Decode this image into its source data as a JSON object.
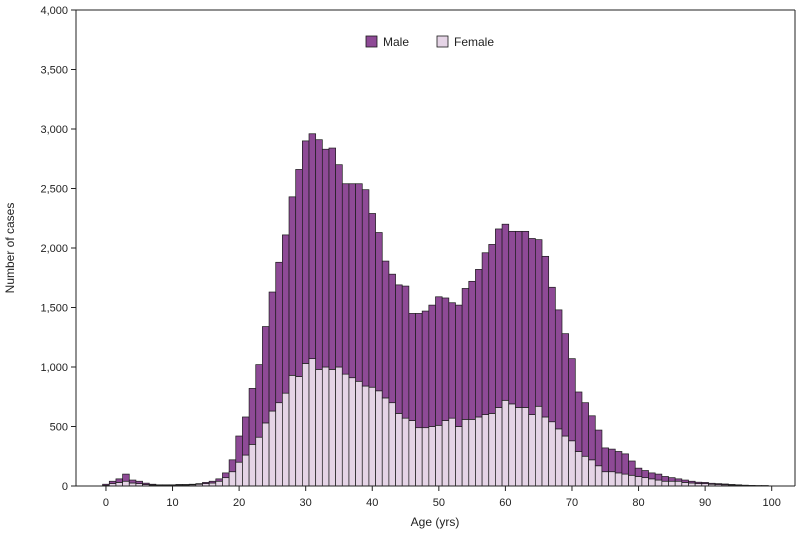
{
  "chart_data": {
    "type": "bar",
    "stacked": true,
    "title": "",
    "xlabel": "Age (yrs)",
    "ylabel": "Number of cases",
    "xlim": [
      -4,
      104
    ],
    "ylim": [
      0,
      4000
    ],
    "x_ticks": [
      0,
      10,
      20,
      30,
      40,
      50,
      60,
      70,
      80,
      90,
      100
    ],
    "x_tick_labels": [
      "0",
      "10",
      "20",
      "30",
      "40",
      "50",
      "60",
      "70",
      "80",
      "90",
      "100"
    ],
    "y_ticks": [
      0,
      500,
      1000,
      1500,
      2000,
      2500,
      3000,
      3500,
      4000
    ],
    "y_tick_labels": [
      "0",
      "500",
      "1,000",
      "1,500",
      "2,000",
      "2,500",
      "3,000",
      "3,500",
      "4,000"
    ],
    "grid": false,
    "legend": "top-center",
    "ages": [
      0,
      1,
      2,
      3,
      4,
      5,
      6,
      7,
      8,
      9,
      10,
      11,
      12,
      13,
      14,
      15,
      16,
      17,
      18,
      19,
      20,
      21,
      22,
      23,
      24,
      25,
      26,
      27,
      28,
      29,
      30,
      31,
      32,
      33,
      34,
      35,
      36,
      37,
      38,
      39,
      40,
      41,
      42,
      43,
      44,
      45,
      46,
      47,
      48,
      49,
      50,
      51,
      52,
      53,
      54,
      55,
      56,
      57,
      58,
      59,
      60,
      61,
      62,
      63,
      64,
      65,
      66,
      67,
      68,
      69,
      70,
      71,
      72,
      73,
      74,
      75,
      76,
      77,
      78,
      79,
      80,
      81,
      82,
      83,
      84,
      85,
      86,
      87,
      88,
      89,
      90,
      91,
      92,
      93,
      94,
      95,
      96,
      97,
      98,
      99
    ],
    "series": [
      {
        "name": "Female",
        "color": "#e5d4e6",
        "values": [
          5,
          20,
          30,
          40,
          25,
          20,
          12,
          8,
          5,
          5,
          5,
          8,
          8,
          10,
          15,
          20,
          25,
          40,
          70,
          120,
          200,
          260,
          350,
          410,
          530,
          630,
          700,
          780,
          930,
          920,
          1030,
          1070,
          980,
          1000,
          980,
          1000,
          940,
          910,
          880,
          840,
          830,
          800,
          740,
          700,
          610,
          570,
          550,
          490,
          490,
          500,
          510,
          550,
          570,
          500,
          560,
          560,
          580,
          600,
          610,
          660,
          720,
          690,
          660,
          660,
          600,
          670,
          580,
          540,
          480,
          420,
          380,
          290,
          250,
          220,
          170,
          120,
          120,
          110,
          100,
          90,
          80,
          70,
          60,
          50,
          40,
          40,
          40,
          30,
          25,
          20,
          20,
          15,
          12,
          10,
          8,
          6,
          4,
          3,
          2,
          2
        ]
      },
      {
        "name": "Male",
        "color": "#8e4a96",
        "values": [
          10,
          20,
          30,
          60,
          25,
          20,
          12,
          7,
          5,
          5,
          5,
          5,
          5,
          5,
          5,
          10,
          15,
          20,
          40,
          100,
          220,
          320,
          470,
          610,
          810,
          1000,
          1180,
          1330,
          1500,
          1740,
          1870,
          1890,
          1930,
          1830,
          1860,
          1700,
          1600,
          1630,
          1660,
          1650,
          1460,
          1330,
          1150,
          1080,
          1080,
          1110,
          900,
          960,
          980,
          1020,
          1080,
          1030,
          970,
          1020,
          1100,
          1160,
          1240,
          1360,
          1420,
          1500,
          1480,
          1450,
          1480,
          1480,
          1480,
          1400,
          1350,
          1130,
          1000,
          860,
          690,
          500,
          450,
          370,
          300,
          200,
          190,
          180,
          170,
          120,
          70,
          60,
          50,
          50,
          40,
          30,
          20,
          20,
          15,
          12,
          10,
          8,
          8,
          7,
          5,
          4,
          3,
          2,
          2,
          2
        ]
      }
    ]
  }
}
